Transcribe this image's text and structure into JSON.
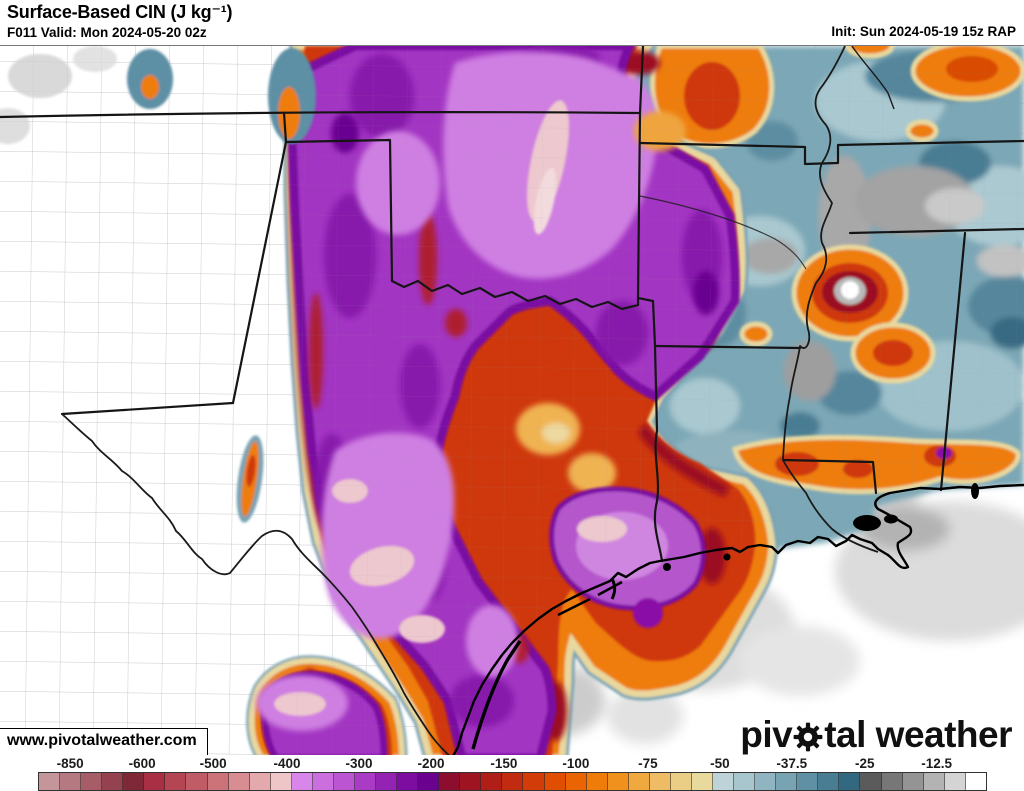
{
  "header": {
    "title": "Surface-Based CIN (J kg⁻¹)",
    "subtitle": "F011 Valid: Mon 2024-05-20 02z",
    "init": "Init: Sun 2024-05-19 15z RAP"
  },
  "map": {
    "watermark": "www.pivotalweather.com",
    "logo_pre": "piv",
    "logo_post": "tal weather",
    "logo_gear_icon": "gear-icon"
  },
  "colorbar": {
    "units": "J kg-1",
    "ticks": [
      {
        "label": "-850",
        "pos": 0.034
      },
      {
        "label": "-600",
        "pos": 0.11
      },
      {
        "label": "-500",
        "pos": 0.185
      },
      {
        "label": "-400",
        "pos": 0.263
      },
      {
        "label": "-300",
        "pos": 0.339
      },
      {
        "label": "-200",
        "pos": 0.415
      },
      {
        "label": "-150",
        "pos": 0.492
      },
      {
        "label": "-100",
        "pos": 0.568
      },
      {
        "label": "-75",
        "pos": 0.644
      },
      {
        "label": "-50",
        "pos": 0.72
      },
      {
        "label": "-37.5",
        "pos": 0.796
      },
      {
        "label": "-25",
        "pos": 0.873
      },
      {
        "label": "-12.5",
        "pos": 0.949
      }
    ],
    "cells": [
      "#c4969c",
      "#b57982",
      "#a65d68",
      "#944250",
      "#7e2838",
      "#a82f44",
      "#b44553",
      "#c05c66",
      "#cc737a",
      "#d88d92",
      "#e3a9ac",
      "#eec6c8",
      "#d886e9",
      "#cb6fdf",
      "#bb55d2",
      "#a93bc4",
      "#9423b3",
      "#7d0da1",
      "#6a028f",
      "#8c0d2d",
      "#9e1521",
      "#b01e18",
      "#c12c10",
      "#d13c08",
      "#e04e02",
      "#ea6403",
      "#ef7b09",
      "#f0911d",
      "#efa93f",
      "#edbc64",
      "#eace85",
      "#e8d99c",
      "#bdd3d7",
      "#a7c6cd",
      "#90b5c1",
      "#78a3b3",
      "#6090a4",
      "#497d93",
      "#336881",
      "#5b5b5b",
      "#777777",
      "#949494",
      "#b3b3b3",
      "#d4d4d4",
      "#ffffff"
    ]
  },
  "palette": {
    "extreme_pink_core": "#eec6c8",
    "strong_violet": "#d886e9",
    "purple": "#a236c2",
    "dark_purple": "#7a07a2",
    "crimson": "#9b1021",
    "red": "#cf3810",
    "orange": "#ee7d0e",
    "tan_edge": "#e9d89e",
    "weak_blue": "#78a3b3",
    "dark_slate": "#336881",
    "near_zero_gray": "#949494"
  }
}
